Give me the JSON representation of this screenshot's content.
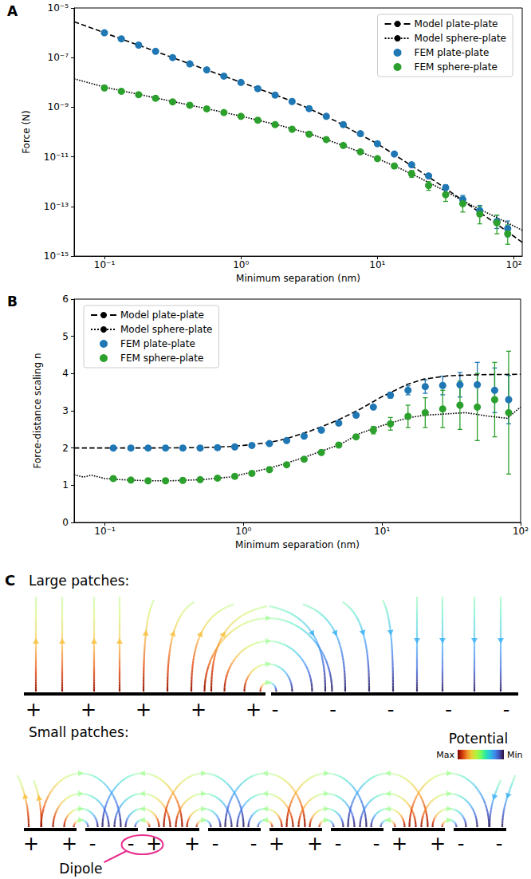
{
  "chart_data": [
    {
      "type": "scatter",
      "title": "A",
      "x_label": "Minimum separation (nm)",
      "y_label": "Force (N)",
      "log": true,
      "grid": false,
      "legend": "upper right",
      "xlim": [
        0.06,
        115
      ],
      "ylim": [
        1e-15,
        1e-05
      ],
      "xticks": [
        {
          "value": 0.1,
          "label": "10⁻¹"
        },
        {
          "value": 1,
          "label": "10⁰"
        },
        {
          "value": 10,
          "label": "10¹"
        },
        {
          "value": 100,
          "label": "10²"
        }
      ],
      "yticks": [
        {
          "value": 1e-15,
          "label": "10⁻¹⁵"
        },
        {
          "value": 1e-13,
          "label": "10⁻¹³"
        },
        {
          "value": 1e-11,
          "label": "10⁻¹¹"
        },
        {
          "value": 1e-09,
          "label": "10⁻⁹"
        },
        {
          "value": 1e-07,
          "label": "10⁻⁷"
        },
        {
          "value": 1e-05,
          "label": "10⁻⁵"
        }
      ],
      "series": [
        {
          "name": "Model plate-plate",
          "type": "line",
          "line_style": "dashed",
          "color": "#000000",
          "x": [
            0.06,
            0.1,
            0.2,
            0.5,
            1,
            2,
            3,
            5,
            7,
            10,
            15,
            20,
            30,
            50,
            80,
            115
          ],
          "values": [
            2.8e-06,
            1e-06,
            2.5e-07,
            4e-08,
            1.02e-08,
            2.5e-09,
            1e-09,
            2.7e-10,
            9.5e-11,
            3.4e-11,
            8e-12,
            2.9e-12,
            6.5e-13,
            9e-14,
            1.5e-14,
            3.6e-15
          ]
        },
        {
          "name": "Model sphere-plate",
          "type": "line",
          "line_style": "dotted",
          "color": "#000000",
          "x": [
            0.06,
            0.1,
            0.2,
            0.5,
            1,
            2,
            3,
            5,
            7,
            10,
            15,
            20,
            30,
            50,
            80,
            115
          ],
          "values": [
            1.4e-08,
            6.5e-09,
            2.9e-09,
            1e-09,
            4.4e-10,
            1.75e-10,
            9.5e-11,
            3.6e-11,
            1.8e-11,
            8.5e-12,
            3.2e-12,
            1.5e-12,
            4.8e-13,
            1.05e-13,
            3e-14,
            1.1e-14
          ]
        },
        {
          "name": "FEM plate-plate",
          "type": "scatter",
          "marker": "circle",
          "color": "#1f77b4",
          "x": [
            0.1,
            0.133,
            0.178,
            0.237,
            0.316,
            0.422,
            0.562,
            0.75,
            1,
            1.33,
            1.78,
            2.37,
            3.16,
            4.22,
            5.62,
            7.5,
            10,
            13.3,
            17.8,
            23.7,
            31.6,
            42.2,
            56.2,
            75,
            90
          ],
          "values": [
            1e-06,
            5.7e-07,
            3.2e-07,
            1.8e-07,
            1e-07,
            5.6e-08,
            3.2e-08,
            1.8e-08,
            1e-08,
            5.6e-09,
            3.1e-09,
            1.7e-09,
            8.8e-10,
            4.3e-10,
            2e-10,
            8.6e-11,
            3.4e-11,
            1.3e-11,
            4.8e-12,
            1.7e-12,
            5.8e-13,
            1.9e-13,
            6.8e-14,
            2.5e-14,
            1.3e-14
          ],
          "err_low": [
            null,
            null,
            null,
            null,
            null,
            null,
            null,
            null,
            null,
            null,
            null,
            null,
            null,
            null,
            null,
            null,
            null,
            null,
            null,
            1.4e-12,
            4.5e-13,
            1.3e-13,
            4e-14,
            1.3e-14,
            6e-15
          ],
          "err_high": [
            null,
            null,
            null,
            null,
            null,
            null,
            null,
            null,
            null,
            null,
            null,
            null,
            null,
            null,
            null,
            null,
            null,
            null,
            null,
            2.1e-12,
            7.5e-13,
            2.8e-13,
            1.1e-13,
            4.5e-14,
            2.6e-14
          ]
        },
        {
          "name": "FEM sphere-plate",
          "type": "scatter",
          "marker": "circle",
          "color": "#2ca02c",
          "x": [
            0.1,
            0.133,
            0.178,
            0.237,
            0.316,
            0.422,
            0.562,
            0.75,
            1,
            1.33,
            1.78,
            2.37,
            3.16,
            4.22,
            5.62,
            7.5,
            10,
            13.3,
            17.8,
            23.7,
            31.6,
            42.2,
            56.2,
            75,
            90
          ],
          "values": [
            6e-09,
            4.4e-09,
            3.2e-09,
            2.3e-09,
            1.65e-09,
            1.2e-09,
            8.6e-10,
            6.1e-10,
            4.3e-10,
            3e-10,
            2e-10,
            1.3e-10,
            8.2e-11,
            5e-11,
            2.9e-11,
            1.6e-11,
            8.5e-12,
            4.3e-12,
            2.1e-12,
            7e-13,
            3e-13,
            1.3e-13,
            5e-14,
            2.2e-14,
            8e-15
          ],
          "err_low": [
            null,
            null,
            null,
            null,
            null,
            null,
            null,
            null,
            null,
            null,
            null,
            null,
            null,
            null,
            null,
            null,
            null,
            3.4e-12,
            1.5e-12,
            4.5e-13,
            1.6e-13,
            6e-14,
            2e-14,
            8e-15,
            3e-15
          ],
          "err_high": [
            null,
            null,
            null,
            null,
            null,
            null,
            null,
            null,
            null,
            null,
            null,
            null,
            null,
            null,
            null,
            null,
            null,
            5.2e-12,
            2.8e-12,
            1e-12,
            4.6e-13,
            2.4e-13,
            1e-13,
            4.5e-14,
            1.8e-14
          ]
        }
      ]
    },
    {
      "type": "scatter",
      "title": "B",
      "x_label": "Minimum separation (nm)",
      "y_label": "Force-distance scaling n",
      "log": "x",
      "grid": false,
      "legend": "upper left",
      "xlim": [
        0.06,
        100
      ],
      "ylim": [
        0,
        6
      ],
      "xticks": [
        {
          "value": 0.1,
          "label": "10⁻¹"
        },
        {
          "value": 1,
          "label": "10⁰"
        },
        {
          "value": 10,
          "label": "10¹"
        },
        {
          "value": 100,
          "label": "10²"
        }
      ],
      "yticks": [
        0,
        1,
        2,
        3,
        4,
        5,
        6
      ],
      "series": [
        {
          "name": "Model plate-plate",
          "type": "line",
          "line_style": "dashed",
          "color": "#000000",
          "x": [
            0.06,
            0.1,
            0.2,
            0.5,
            0.8,
            1,
            1.5,
            2,
            3,
            4,
            5,
            7,
            10,
            15,
            20,
            30,
            50,
            100
          ],
          "values": [
            2.0,
            2.0,
            2.0,
            2.01,
            2.04,
            2.07,
            2.14,
            2.24,
            2.45,
            2.63,
            2.78,
            3.05,
            3.38,
            3.7,
            3.85,
            3.94,
            3.97,
            3.98
          ]
        },
        {
          "name": "Model sphere-plate",
          "type": "line",
          "line_style": "dotted",
          "color": "#000000",
          "x": [
            0.06,
            0.07,
            0.08,
            0.1,
            0.13,
            0.2,
            0.3,
            0.5,
            0.8,
            1,
            1.5,
            2,
            3,
            5,
            7,
            10,
            15,
            20,
            30,
            40,
            60,
            80,
            100
          ],
          "values": [
            1.28,
            1.22,
            1.27,
            1.18,
            1.15,
            1.12,
            1.12,
            1.15,
            1.22,
            1.3,
            1.45,
            1.58,
            1.8,
            2.1,
            2.4,
            2.6,
            2.8,
            2.88,
            2.92,
            2.95,
            2.85,
            2.8,
            3.1
          ]
        },
        {
          "name": "FEM plate-plate",
          "type": "scatter",
          "marker": "circle",
          "color": "#1f77b4",
          "x": [
            0.115,
            0.154,
            0.205,
            0.274,
            0.365,
            0.487,
            0.65,
            0.866,
            1.15,
            1.54,
            2.05,
            2.74,
            3.65,
            4.87,
            6.5,
            8.66,
            11.5,
            15.4,
            20.5,
            27.4,
            36.5,
            48.7,
            65,
            82
          ],
          "values": [
            2.0,
            2.0,
            2.0,
            2.0,
            2.0,
            2.0,
            2.01,
            2.03,
            2.07,
            2.12,
            2.2,
            2.32,
            2.48,
            2.67,
            2.88,
            3.1,
            3.42,
            3.55,
            3.65,
            3.68,
            3.7,
            3.7,
            3.55,
            3.3
          ],
          "err_low": [
            null,
            null,
            null,
            null,
            null,
            null,
            null,
            null,
            null,
            null,
            null,
            null,
            null,
            null,
            null,
            null,
            3.34,
            3.43,
            3.47,
            3.43,
            3.37,
            3.1,
            2.95,
            2.65
          ],
          "err_high": [
            null,
            null,
            null,
            null,
            null,
            null,
            null,
            null,
            null,
            null,
            null,
            null,
            null,
            null,
            null,
            null,
            3.5,
            3.67,
            3.83,
            3.93,
            4.03,
            4.3,
            4.15,
            3.95
          ]
        },
        {
          "name": "FEM sphere-plate",
          "type": "scatter",
          "marker": "circle",
          "color": "#2ca02c",
          "x": [
            0.115,
            0.154,
            0.205,
            0.274,
            0.365,
            0.487,
            0.65,
            0.866,
            1.15,
            1.54,
            2.05,
            2.74,
            3.65,
            4.87,
            6.5,
            8.66,
            11.5,
            15.4,
            20.5,
            27.4,
            36.5,
            48.7,
            65,
            82
          ],
          "values": [
            1.18,
            1.14,
            1.12,
            1.12,
            1.13,
            1.15,
            1.19,
            1.24,
            1.32,
            1.42,
            1.55,
            1.7,
            1.88,
            2.08,
            2.3,
            2.48,
            2.65,
            2.85,
            2.95,
            3.05,
            3.15,
            3.1,
            3.3,
            2.95
          ],
          "err_low": [
            null,
            null,
            null,
            null,
            null,
            null,
            null,
            null,
            null,
            null,
            null,
            null,
            null,
            null,
            2.25,
            2.38,
            2.48,
            2.55,
            2.55,
            2.55,
            2.5,
            2.2,
            2.3,
            1.3
          ],
          "err_high": [
            null,
            null,
            null,
            null,
            null,
            null,
            null,
            null,
            null,
            null,
            null,
            null,
            null,
            null,
            2.35,
            2.58,
            2.82,
            3.15,
            3.35,
            3.55,
            3.8,
            4.0,
            4.3,
            4.6
          ]
        }
      ]
    }
  ],
  "diagram": {
    "title": "C",
    "panels": [
      {
        "title": "Large patches:",
        "signs": [
          "+",
          "+",
          "+",
          "+",
          "+",
          "-",
          "-",
          "-",
          "-",
          "-"
        ]
      },
      {
        "title": "Small patches:",
        "signs": [
          "+",
          "+",
          "-",
          "-",
          "+",
          "+",
          "-",
          "-",
          "+",
          "+",
          "-",
          "-",
          "+",
          "+",
          "-",
          "-"
        ]
      }
    ],
    "annotation": "Dipole",
    "colorbar": {
      "title": "Potential",
      "max_label": "Max",
      "min_label": "Min"
    }
  }
}
